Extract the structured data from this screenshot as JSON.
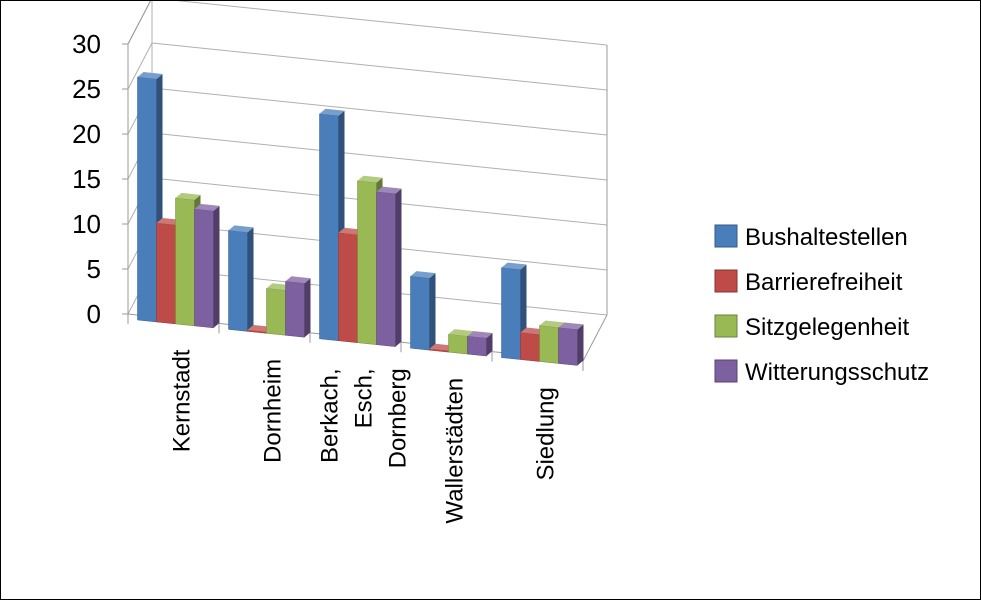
{
  "chart_data": {
    "type": "bar",
    "variant": "3d-clustered-column",
    "title": "",
    "xlabel": "",
    "ylabel": "",
    "ylim": [
      0,
      30
    ],
    "yticks": [
      "0",
      "5",
      "10",
      "15",
      "20",
      "25",
      "30"
    ],
    "grid": true,
    "legend_position": "right",
    "categories": [
      [
        "Kernstadt"
      ],
      [
        "Dornheim"
      ],
      [
        "Berkach,",
        "Esch,",
        "Dornberg"
      ],
      [
        "Wallerstädten"
      ],
      [
        "Siedlung"
      ]
    ],
    "series": [
      {
        "name": "Bushaltestellen",
        "color": "#4a7ebb",
        "values": [
          27,
          11,
          25,
          8,
          10
        ]
      },
      {
        "name": "Barrierefreiheit",
        "color": "#be4b48",
        "values": [
          11,
          0,
          12,
          0,
          3
        ]
      },
      {
        "name": "Sitzgelegenheit",
        "color": "#98b954",
        "values": [
          14,
          5,
          18,
          2,
          4
        ]
      },
      {
        "name": "Witterungsschutz",
        "color": "#7d60a0",
        "values": [
          13,
          6,
          17,
          2,
          4
        ]
      }
    ]
  }
}
